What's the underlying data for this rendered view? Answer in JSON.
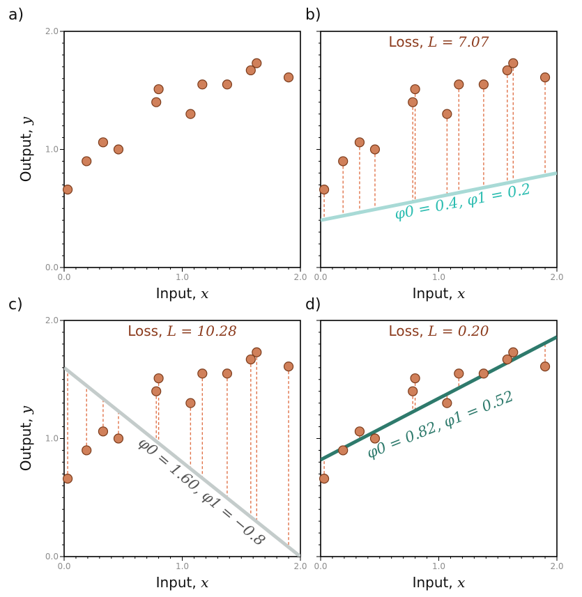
{
  "colors": {
    "point_fill": "#d0805a",
    "point_stroke": "#7a3a1a",
    "residual": "#e0734a",
    "loss_text": "#8b3a1c",
    "axis": "#000000",
    "tick_text": "#8c8c8c"
  },
  "chart_data": [
    {
      "type": "scatter",
      "panel": "a)",
      "xlabel_word": "Input,",
      "xlabel_var": "x",
      "ylabel_word": "Output,",
      "ylabel_var": "y",
      "xlim": [
        0.0,
        2.0
      ],
      "ylim": [
        0.0,
        2.0
      ],
      "x_ticks": [
        0.0,
        1.0,
        2.0
      ],
      "y_ticks": [
        0.0,
        1.0,
        2.0
      ],
      "x_tick_labels": [
        "0.0",
        "1.0",
        "2.0"
      ],
      "y_tick_labels": [
        "0.0",
        "1.0",
        "2.0"
      ],
      "show_ylabel": true,
      "x": [
        0.03,
        0.19,
        0.33,
        0.46,
        0.78,
        0.8,
        1.07,
        1.17,
        1.38,
        1.58,
        1.63,
        1.9
      ],
      "y": [
        0.66,
        0.9,
        1.06,
        1.0,
        1.4,
        1.51,
        1.3,
        1.55,
        1.55,
        1.67,
        1.73,
        1.61
      ]
    },
    {
      "type": "scatter",
      "panel": "b)",
      "xlabel_word": "Input,",
      "xlabel_var": "x",
      "xlim": [
        0.0,
        2.0
      ],
      "ylim": [
        0.0,
        2.0
      ],
      "x_ticks": [
        0.0,
        1.0,
        2.0
      ],
      "y_ticks": [
        0.0,
        1.0,
        2.0
      ],
      "x_tick_labels": [
        "0.0",
        "1.0",
        "2.0"
      ],
      "y_tick_labels": [
        "",
        "",
        ""
      ],
      "show_ylabel": false,
      "x": [
        0.03,
        0.19,
        0.33,
        0.46,
        0.78,
        0.8,
        1.07,
        1.17,
        1.38,
        1.58,
        1.63,
        1.9
      ],
      "y": [
        0.66,
        0.9,
        1.06,
        1.0,
        1.4,
        1.51,
        1.3,
        1.55,
        1.55,
        1.67,
        1.73,
        1.61
      ],
      "loss_label": "Loss,",
      "loss_value": "L = 7.07",
      "line": {
        "phi0": 0.4,
        "phi1": 0.2,
        "color": "#a8dad6",
        "label_color": "#2bbcb0",
        "label": "φ0 = 0.4, φ1 = 0.2"
      }
    },
    {
      "type": "scatter",
      "panel": "c)",
      "xlabel_word": "Input,",
      "xlabel_var": "x",
      "ylabel_word": "Output,",
      "ylabel_var": "y",
      "xlim": [
        0.0,
        2.0
      ],
      "ylim": [
        0.0,
        2.0
      ],
      "x_ticks": [
        0.0,
        1.0,
        2.0
      ],
      "y_ticks": [
        0.0,
        1.0,
        2.0
      ],
      "x_tick_labels": [
        "0.0",
        "1.0",
        "2.0"
      ],
      "y_tick_labels": [
        "0.0",
        "1.0",
        "2.0"
      ],
      "show_ylabel": true,
      "x": [
        0.03,
        0.19,
        0.33,
        0.46,
        0.78,
        0.8,
        1.07,
        1.17,
        1.38,
        1.58,
        1.63,
        1.9
      ],
      "y": [
        0.66,
        0.9,
        1.06,
        1.0,
        1.4,
        1.51,
        1.3,
        1.55,
        1.55,
        1.67,
        1.73,
        1.61
      ],
      "loss_label": "Loss,",
      "loss_value": "L = 10.28",
      "line": {
        "phi0": 1.6,
        "phi1": -0.8,
        "color": "#c4cccb",
        "label_color": "#555555",
        "label": "φ0 = 1.60, φ1 = −0.8"
      }
    },
    {
      "type": "scatter",
      "panel": "d)",
      "xlabel_word": "Input,",
      "xlabel_var": "x",
      "xlim": [
        0.0,
        2.0
      ],
      "ylim": [
        0.0,
        2.0
      ],
      "x_ticks": [
        0.0,
        1.0,
        2.0
      ],
      "y_ticks": [
        0.0,
        1.0,
        2.0
      ],
      "x_tick_labels": [
        "0.0",
        "1.0",
        "2.0"
      ],
      "y_tick_labels": [
        "",
        "",
        ""
      ],
      "show_ylabel": false,
      "x": [
        0.03,
        0.19,
        0.33,
        0.46,
        0.78,
        0.8,
        1.07,
        1.17,
        1.38,
        1.58,
        1.63,
        1.9
      ],
      "y": [
        0.66,
        0.9,
        1.06,
        1.0,
        1.4,
        1.51,
        1.3,
        1.55,
        1.55,
        1.67,
        1.73,
        1.61
      ],
      "loss_label": "Loss,",
      "loss_value": "L = 0.20",
      "line": {
        "phi0": 0.82,
        "phi1": 0.52,
        "color": "#2e7a6c",
        "label_color": "#2e7a6c",
        "label": "φ0 = 0.82, φ1 = 0.52"
      }
    }
  ]
}
